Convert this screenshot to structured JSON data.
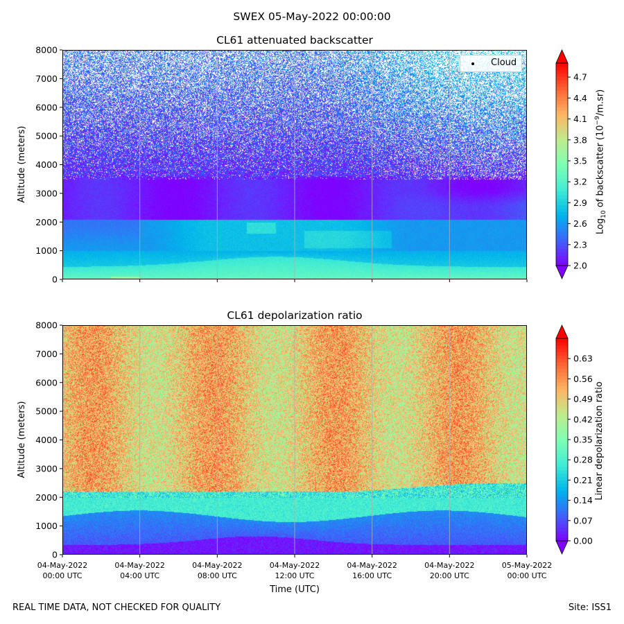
{
  "suptitle": "SWEX 05-May-2022 00:00:00",
  "footer": {
    "left": "REAL TIME DATA, NOT CHECKED FOR QUALITY",
    "right": "Site: ISS1"
  },
  "colors": {
    "rainbow": [
      "#8000ff",
      "#4062fa",
      "#00b5eb",
      "#40ecd4",
      "#80ffb4",
      "#c0eb8d",
      "#ffb462",
      "#ff6232",
      "#ff0000"
    ],
    "grid": "#b0b0b0",
    "axis": "#000000"
  },
  "chart_data": [
    {
      "type": "heatmap",
      "title": "CL61 attenuated backscatter",
      "xlabel": "",
      "ylabel": "Altitude (meters)",
      "ylim": [
        0,
        8000
      ],
      "yticks": [
        0,
        1000,
        2000,
        3000,
        4000,
        5000,
        6000,
        7000,
        8000
      ],
      "colorbar": {
        "label": "Log10 of backscatter (10^-9/m.sr)",
        "label_base": "Log",
        "label_sub": "10",
        "label_mid": " of backscatter (10",
        "label_sup": "−9",
        "label_end": "/m.sr)",
        "range": [
          2.0,
          4.9
        ],
        "ticks": [
          "2.0",
          "2.3",
          "2.6",
          "2.9",
          "3.2",
          "3.5",
          "3.8",
          "4.1",
          "4.4",
          "4.7"
        ],
        "extend": "both"
      },
      "legend": {
        "label": "Cloud",
        "position": "top-right"
      },
      "field_description": [
        {
          "altitude_range": [
            0,
            500
          ],
          "value_range": [
            3.0,
            3.4
          ],
          "note": "boundary layer, higher near ground"
        },
        {
          "altitude_range": [
            500,
            1000
          ],
          "value_range": [
            2.7,
            3.0
          ],
          "note": "aerosol layer, thickest 08:00-14:00"
        },
        {
          "altitude_range": [
            1000,
            2000
          ],
          "value_range": [
            2.5,
            2.9
          ],
          "note": "elevated layer, brighter 10:00-18:00"
        },
        {
          "altitude_range": [
            2000,
            3600
          ],
          "value_range": [
            2.0,
            2.4
          ],
          "note": "low backscatter band"
        },
        {
          "altitude_range": [
            3600,
            8000
          ],
          "value_range": [
            2.0,
            3.2
          ],
          "note": "noisy, increasingly sparse with height"
        }
      ]
    },
    {
      "type": "heatmap",
      "title": "CL61 depolarization ratio",
      "xlabel": "Time (UTC)",
      "ylabel": "Altitude (meters)",
      "ylim": [
        0,
        8000
      ],
      "yticks": [
        0,
        1000,
        2000,
        3000,
        4000,
        5000,
        6000,
        7000,
        8000
      ],
      "xticks": [
        {
          "date": "04-May-2022",
          "time": "00:00 UTC"
        },
        {
          "date": "04-May-2022",
          "time": "04:00 UTC"
        },
        {
          "date": "04-May-2022",
          "time": "08:00 UTC"
        },
        {
          "date": "04-May-2022",
          "time": "12:00 UTC"
        },
        {
          "date": "04-May-2022",
          "time": "16:00 UTC"
        },
        {
          "date": "04-May-2022",
          "time": "20:00 UTC"
        },
        {
          "date": "05-May-2022",
          "time": "00:00 UTC"
        }
      ],
      "xrange_hours": [
        0,
        24
      ],
      "colorbar": {
        "label": "Linear depolarization ratio",
        "range": [
          0.0,
          0.7
        ],
        "ticks": [
          "0.00",
          "0.07",
          "0.14",
          "0.21",
          "0.28",
          "0.35",
          "0.42",
          "0.49",
          "0.56",
          "0.63"
        ],
        "extend": "both"
      },
      "field_description": [
        {
          "altitude_range": [
            0,
            700
          ],
          "value_range": [
            0.0,
            0.05
          ],
          "note": "near-surface low depolarization"
        },
        {
          "altitude_range": [
            700,
            1400
          ],
          "value_range": [
            0.06,
            0.14
          ],
          "note": "blue layer"
        },
        {
          "altitude_range": [
            1400,
            2200
          ],
          "value_range": [
            0.2,
            0.3
          ],
          "note": "transition layer"
        },
        {
          "altitude_range": [
            2200,
            8000
          ],
          "value_range": [
            0.42,
            0.6
          ],
          "note": "noisy orange/red aloft"
        }
      ]
    }
  ]
}
